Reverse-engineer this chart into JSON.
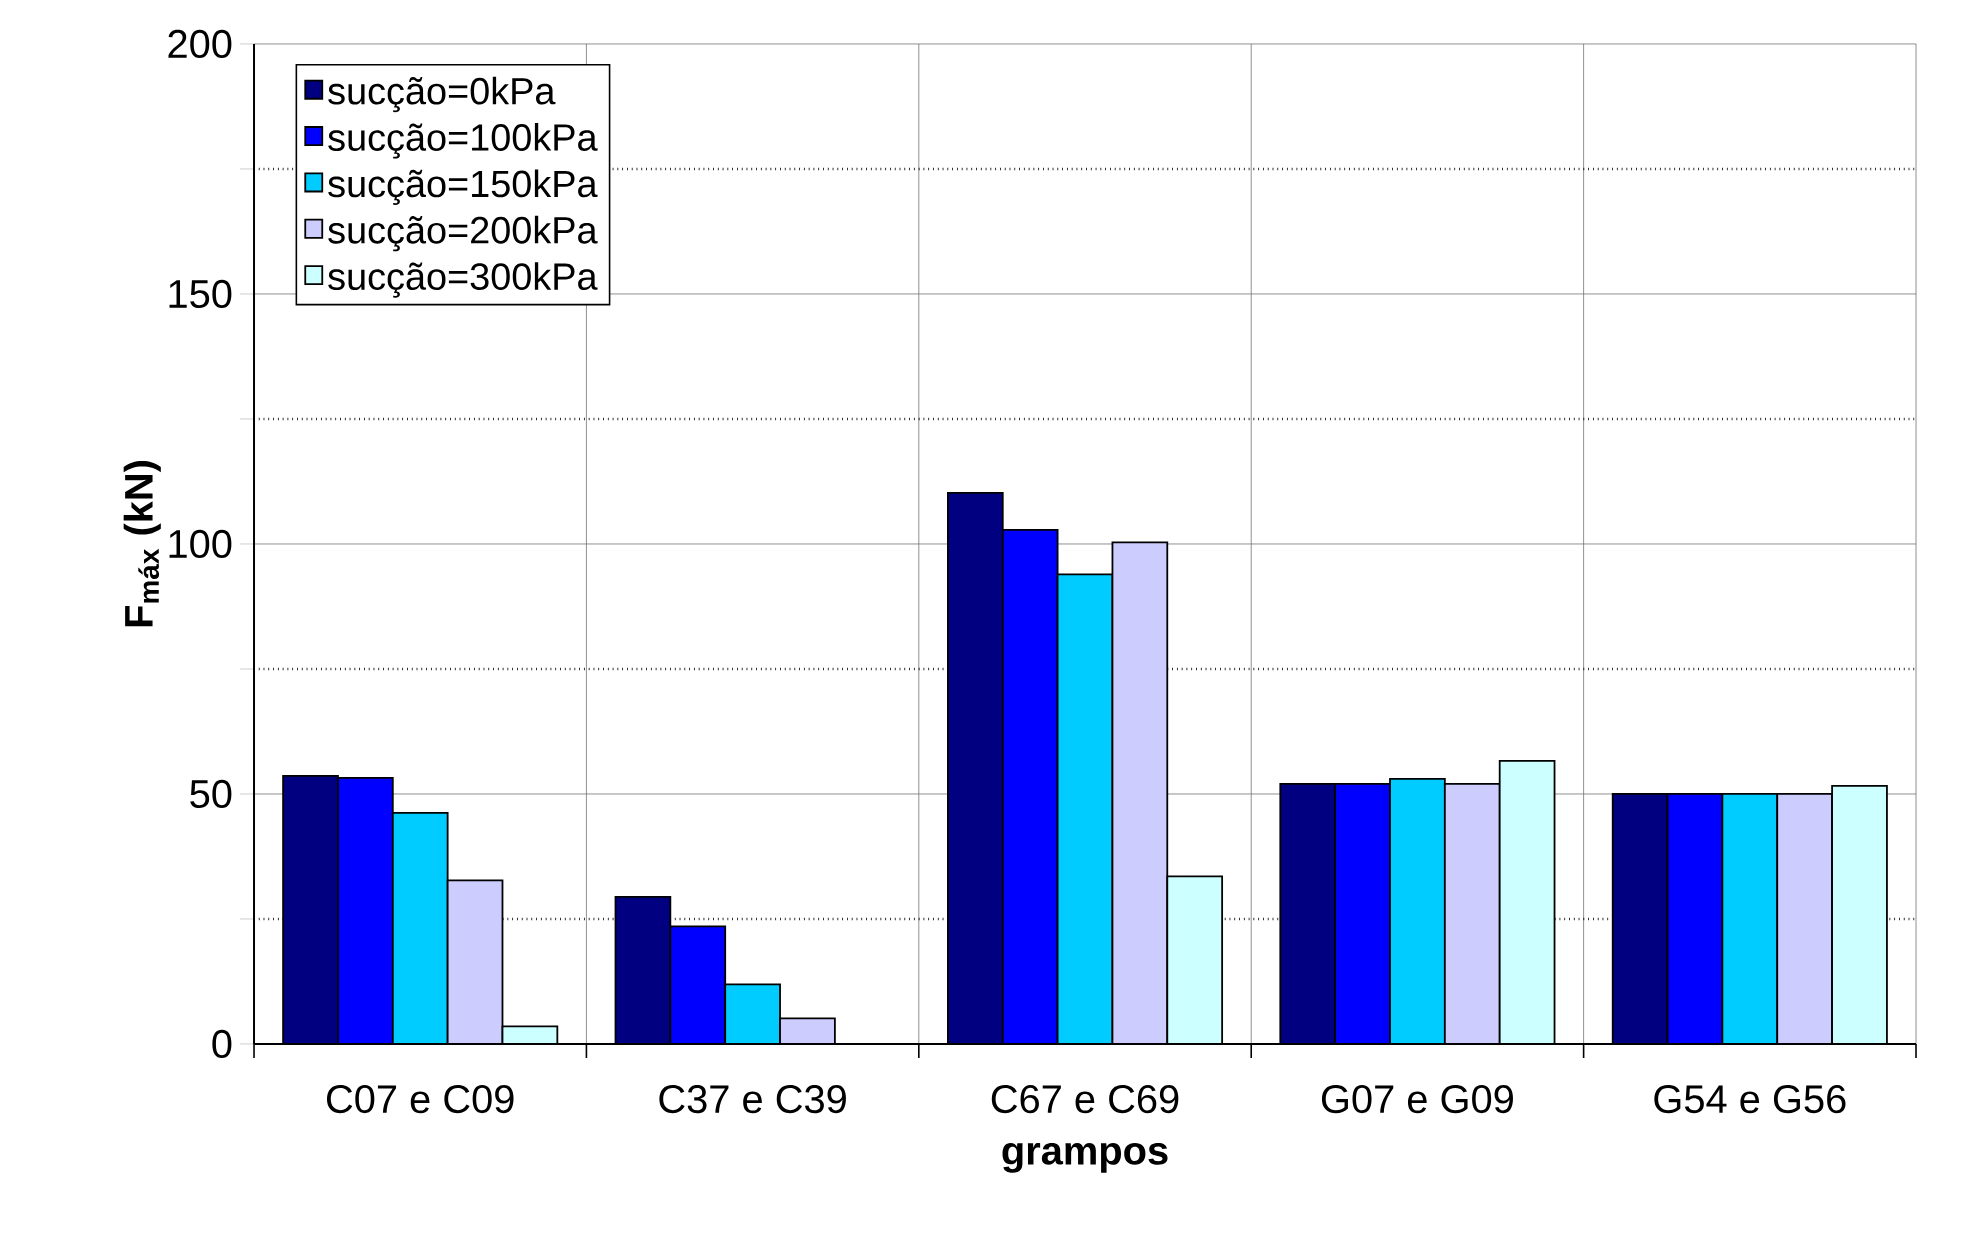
{
  "chart_data": {
    "type": "bar",
    "xlabel": "grampos",
    "ylabel": "F$_{máx}$ (kN)",
    "categories": [
      "C07 e C09",
      "C37 e C39",
      "C67 e C69",
      "G07 e G09",
      "G54 e G56"
    ],
    "series": [
      {
        "name": "sucção=0kPa",
        "color": "#000080",
        "values": [
          53.6,
          29.4,
          110.2,
          52,
          50
        ]
      },
      {
        "name": "sucção=100kPa",
        "color": "#0000ff",
        "values": [
          53.2,
          23.5,
          102.8,
          52,
          50
        ]
      },
      {
        "name": "sucção=150kPa",
        "color": "#00ccff",
        "values": [
          46.2,
          11.9,
          93.9,
          53,
          50
        ]
      },
      {
        "name": "sucção=200kPa",
        "color": "#ccccff",
        "values": [
          32.7,
          5.1,
          100.3,
          52,
          50
        ]
      },
      {
        "name": "sucção=300kPa",
        "color": "#ccffff",
        "values": [
          3.5,
          null,
          33.5,
          56.6,
          51.6
        ]
      }
    ],
    "ylim": [
      0,
      200
    ],
    "yticks": [
      0,
      {
        "value": 25,
        "label": null
      },
      50,
      {
        "value": 75,
        "label": null
      },
      100,
      {
        "value": 125,
        "label": null
      },
      150,
      {
        "value": 175,
        "label": null
      },
      200
    ],
    "grid": true,
    "legend": "top left"
  }
}
